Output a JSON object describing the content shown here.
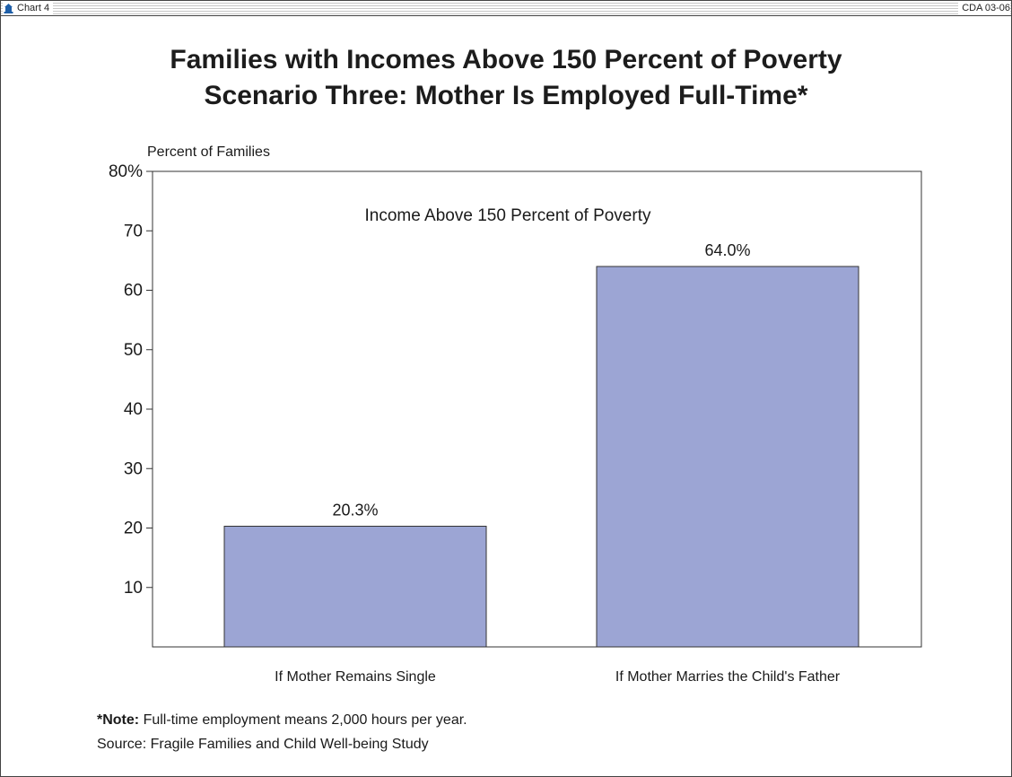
{
  "header": {
    "left_label": "Chart 4",
    "right_label": "CDA 03-06",
    "logo_icon": "bell-icon"
  },
  "title": {
    "line1": "Families with Incomes Above 150 Percent of Poverty",
    "line2": "Scenario Three: Mother Is Employed Full-Time*"
  },
  "chart_data": {
    "type": "bar",
    "title": "Income Above 150 Percent of Poverty",
    "ylabel": "Percent of Families",
    "xlabel": "",
    "categories": [
      "If Mother Remains Single",
      "If Mother Marries the Child's Father"
    ],
    "values": [
      20.3,
      64.0
    ],
    "value_labels": [
      "20.3%",
      "64.0%"
    ],
    "ylim": [
      0,
      80
    ],
    "yticks": [
      10,
      20,
      30,
      40,
      50,
      60,
      70,
      80
    ],
    "ytick_labels": [
      "10",
      "20",
      "30",
      "40",
      "50",
      "60",
      "70",
      "80%"
    ],
    "bar_color": "#9ca5d4",
    "grid": false
  },
  "footnotes": {
    "note_label": "*Note:",
    "note_text": "Full-time employment means 2,000 hours per year.",
    "source_label": "Source:",
    "source_text": "Fragile Families and Child Well-being Study"
  }
}
